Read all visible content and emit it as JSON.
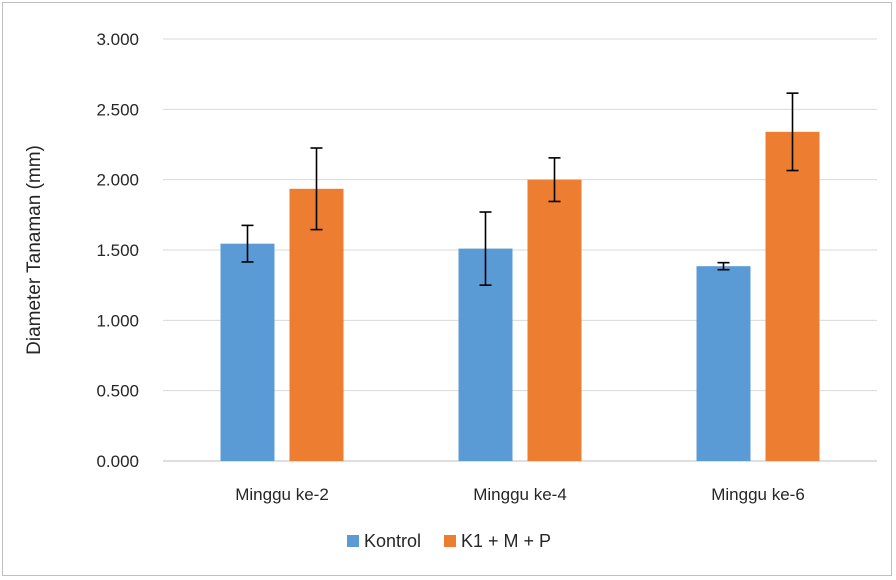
{
  "chart_data": {
    "type": "bar",
    "title": "",
    "xlabel": "",
    "ylabel": "Diameter Tanaman (mm)",
    "categories": [
      "Minggu ke-2",
      "Minggu ke-4",
      "Minggu ke-6"
    ],
    "series": [
      {
        "name": "Kontrol",
        "color": "#5b9bd5",
        "values": [
          1.545,
          1.51,
          1.385
        ],
        "error": [
          0.13,
          0.26,
          0.025
        ]
      },
      {
        "name": "K1 + M + P",
        "color": "#ed7d31",
        "values": [
          1.935,
          2.0,
          2.34
        ],
        "error": [
          0.29,
          0.155,
          0.275
        ]
      }
    ],
    "ylim": [
      0,
      3
    ],
    "yticks": [
      0,
      0.5,
      1,
      1.5,
      2,
      2.5,
      3
    ],
    "ytick_labels": [
      "0.000",
      "0.500",
      "1.000",
      "1.500",
      "2.000",
      "2.500",
      "3.000"
    ],
    "grid": true,
    "legend_position": "bottom"
  }
}
